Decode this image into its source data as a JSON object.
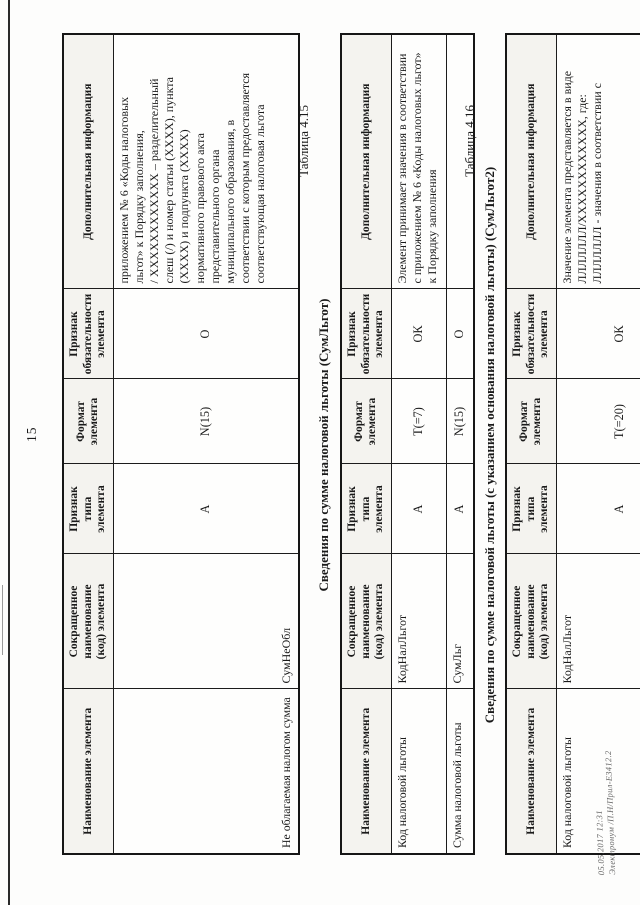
{
  "page_number": "15",
  "columns": [
    "Наименование элемента",
    "Сокращенное\nнаименование\n(код) элемента",
    "Признак\nтипа\nэлемента",
    "Формат\nэлемента",
    "Признак\nобязательности\nэлемента",
    "Дополнительная информация"
  ],
  "tables": [
    {
      "caption": "",
      "title": "",
      "rows": [
        [
          "Не облагаемая налогом сумма",
          "СумНеОбл",
          "А",
          "N(15)",
          "О",
          "приложением № 6 «Коды налоговых\nльгот» к Порядку заполнения,\n/ ХХХХХХХХХХХХ – разделительный\nслеш (/) и номер статьи (ХХХХ), пункта\n(ХХХХ) и подпункта (ХХХХ)\nнормативного правового акта\nпредставительного органа\nмуниципального образования, в\nсоответствии с которым предоставляется\nсоответствующая налоговая льгота"
        ]
      ]
    },
    {
      "caption": "Таблица 4.15",
      "title": "Сведения по сумме налоговой льготы (СумЛьгот)",
      "rows": [
        [
          "Код налоговой льготы",
          "КодНалЛьгот",
          "А",
          "Т(=7)",
          "ОК",
          "Элемент принимает значения в соответствии\nс приложением № 6 «Коды налоговых льгот»\nк Порядку заполнения"
        ],
        [
          "Сумма налоговой льготы",
          "СумЛьг",
          "А",
          "N(15)",
          "О",
          ""
        ]
      ]
    },
    {
      "caption": "Таблица 4.16",
      "title": "Сведения по сумме налоговой льготы (с указанием основания налоговой льготы) (СумЛьгот2)",
      "rows": [
        [
          "Код налоговой льготы",
          "КодНалЛьгот",
          "А",
          "Т(=20)",
          "ОК",
          "Значение элемента представляется в виде\nЛЛЛЛЛЛЛ/ХХХХХХХХХХХХ, где:\nЛЛЛЛЛЛЛ - значения в соответствии с"
        ]
      ]
    }
  ],
  "footer": {
    "line1": "05.05.2017 12:31",
    "line2": "Электронум /П.Н/Прил-Е3412.2"
  }
}
